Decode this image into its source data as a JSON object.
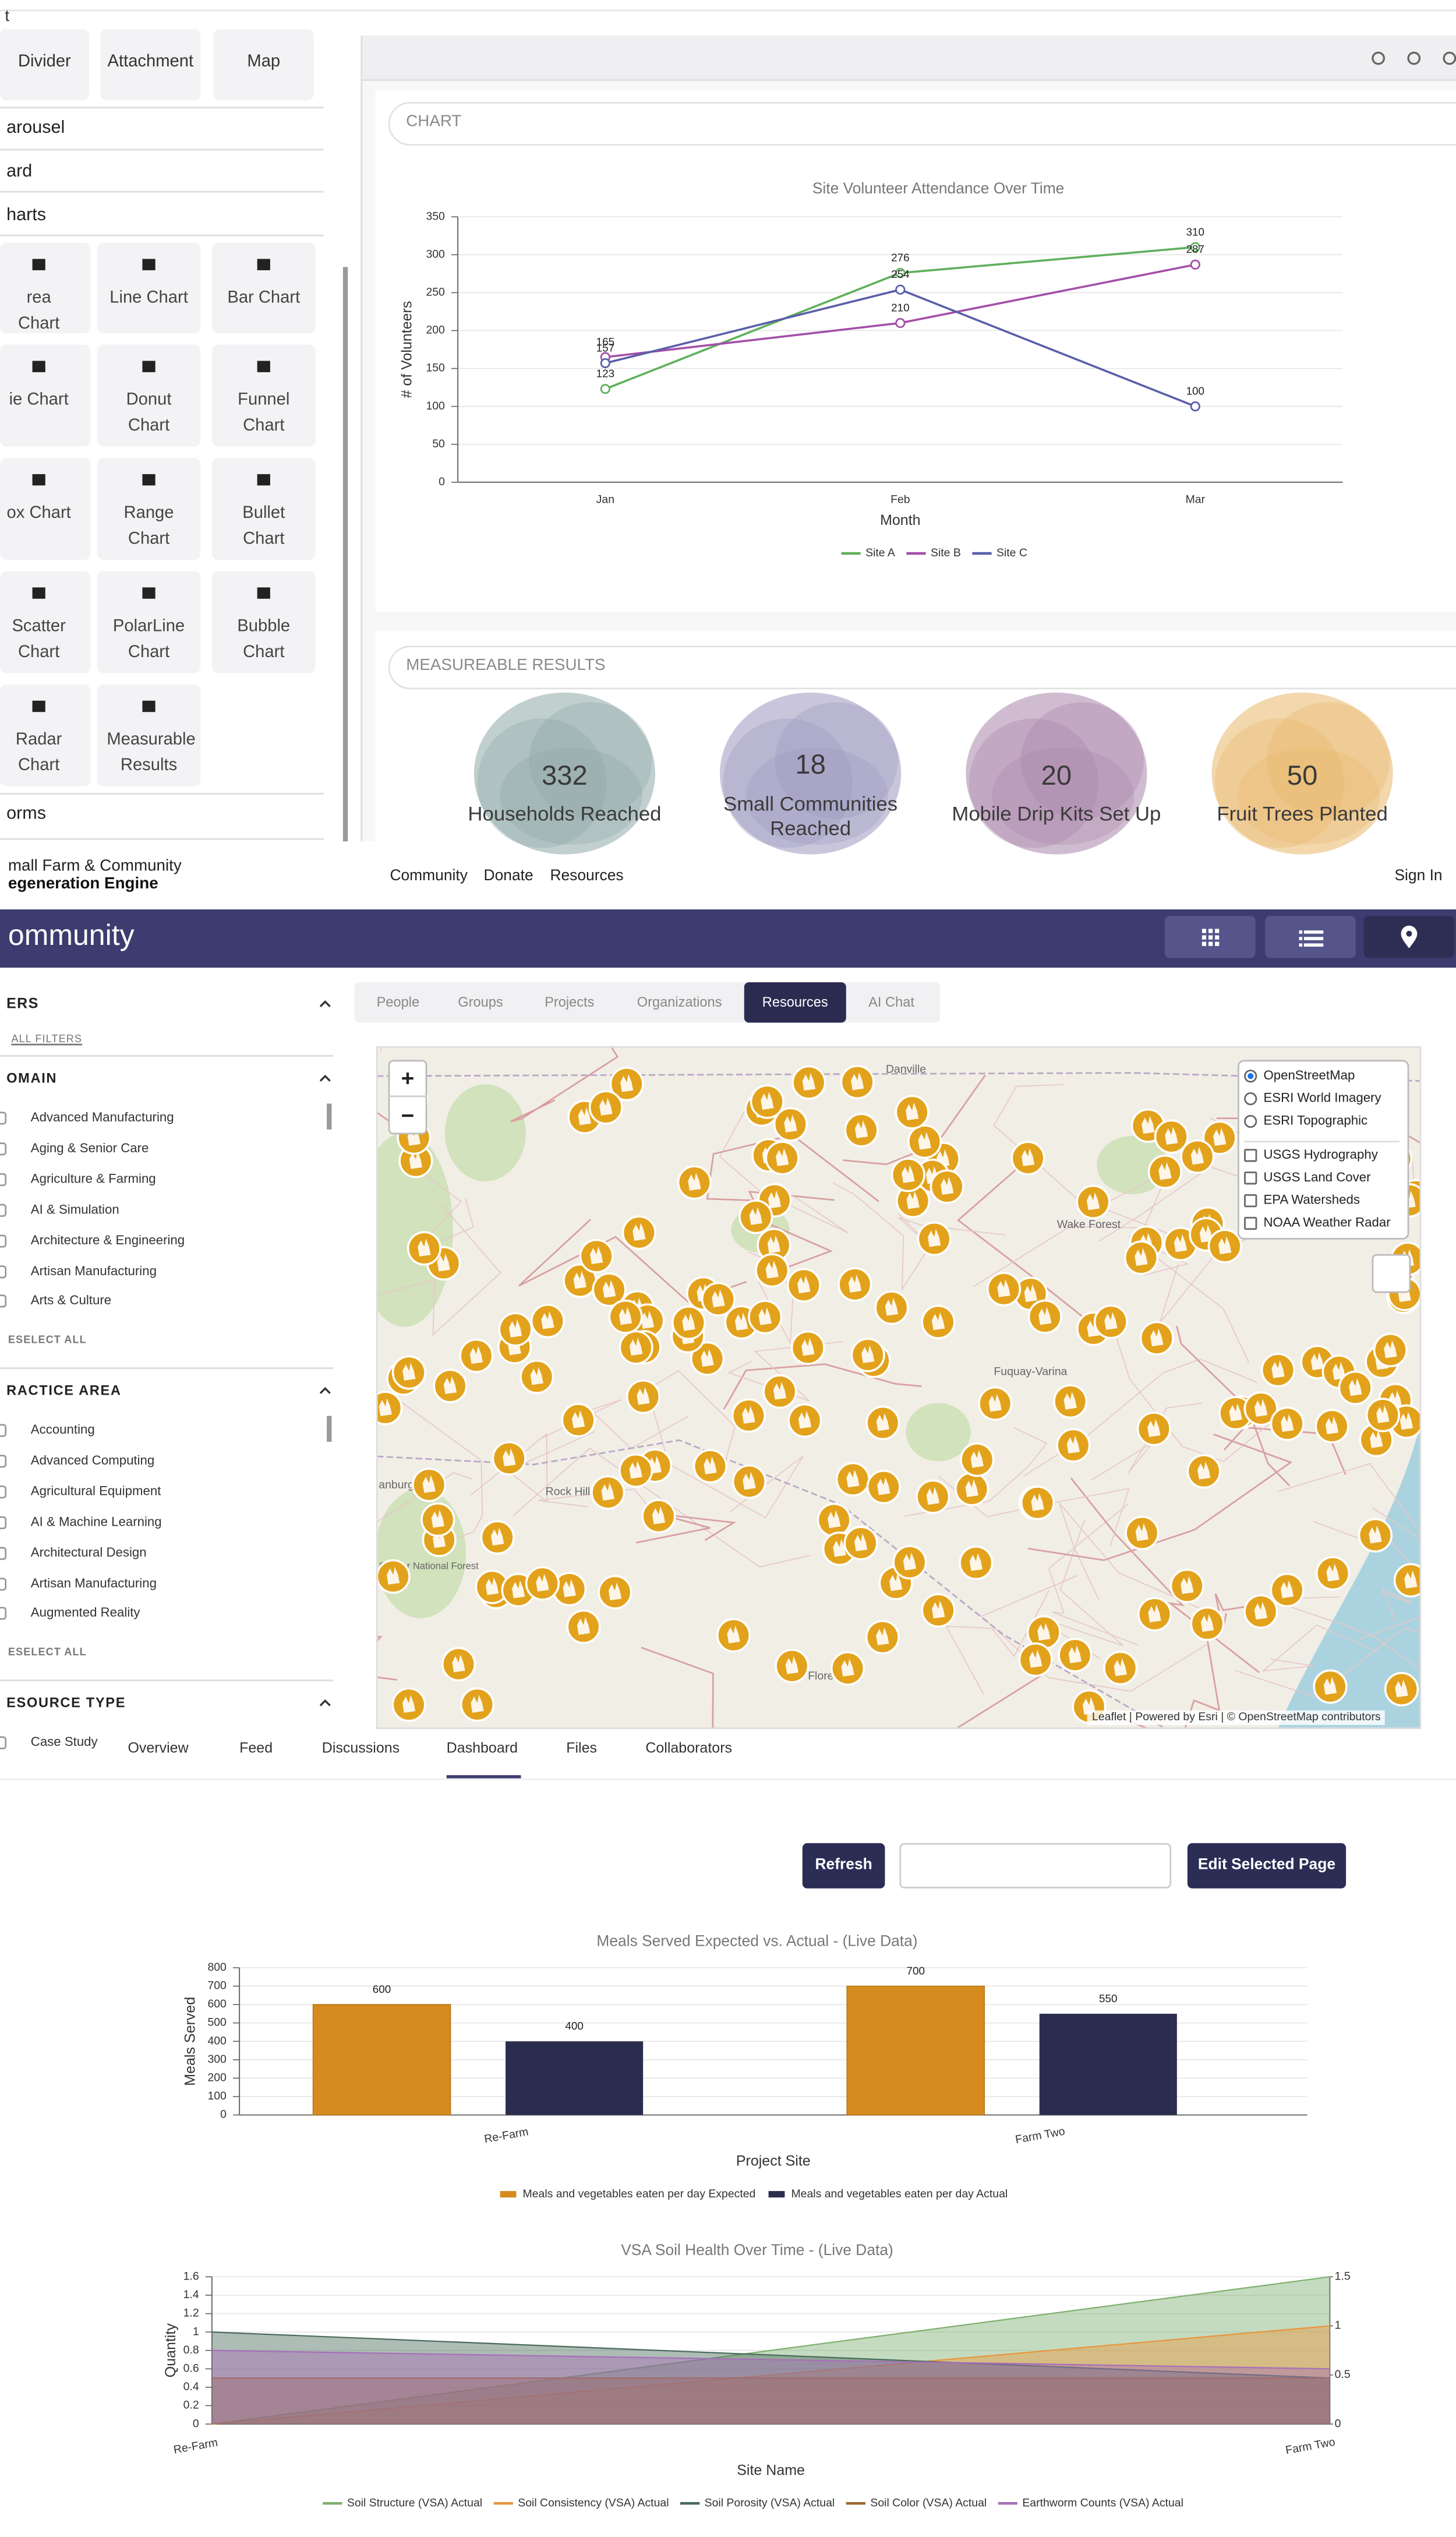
{
  "builder": {
    "cut_top": "t",
    "top_widgets": [
      "Divider",
      "Attachment",
      "Map"
    ],
    "sections": [
      "arousel",
      "ard",
      "harts"
    ],
    "chart_widgets": [
      "rea Chart",
      "Line Chart",
      "Bar Chart",
      "ie Chart",
      "Donut Chart",
      "Funnel Chart",
      "ox Chart",
      "Range Chart",
      "Bullet Chart",
      "Scatter Chart",
      "PolarLine Chart",
      "Bubble Chart",
      "Radar Chart",
      "Measurable Results"
    ],
    "forms_section": "orms"
  },
  "chart_card": {
    "label": "CHART"
  },
  "results_card": {
    "label": "MEASUREABLE RESULTS",
    "items": [
      {
        "value": 332,
        "label": "Households Reached",
        "color": "#8ea7a6"
      },
      {
        "value": 18,
        "label": "Small Communities Reached",
        "color": "#9c98c0"
      },
      {
        "value": 20,
        "label": "Mobile Drip Kits Set Up",
        "color": "#a985a9"
      },
      {
        "value": 50,
        "label": "Fruit Trees Planted",
        "color": "#e9b769"
      }
    ]
  },
  "site": {
    "brand": [
      "mall Farm & Community",
      "egeneration Engine"
    ],
    "nav": [
      "Community",
      "Donate",
      "Resources"
    ],
    "sign_in": "Sign In",
    "banner": "ommunity",
    "tabs": [
      "People",
      "Groups",
      "Projects",
      "Organizations",
      "Resources",
      "AI Chat"
    ],
    "active_tab": "Resources"
  },
  "filters": {
    "header": "ERS",
    "all": "ALL FILTERS",
    "groups": [
      {
        "title": "OMAIN",
        "items": [
          "Advanced Manufacturing",
          "Aging & Senior Care",
          "Agriculture & Farming",
          "AI & Simulation",
          "Architecture & Engineering",
          "Artisan Manufacturing",
          "Arts & Culture"
        ],
        "deselect": "ESELECT ALL"
      },
      {
        "title": "RACTICE AREA",
        "items": [
          "Accounting",
          "Advanced Computing",
          "Agricultural Equipment",
          "AI & Machine Learning",
          "Architectural Design",
          "Artisan Manufacturing",
          "Augmented Reality"
        ],
        "deselect": "ESELECT ALL"
      },
      {
        "title": "ESOURCE TYPE",
        "items": [
          "Case Study"
        ]
      }
    ]
  },
  "map": {
    "zoom": [
      "+",
      "−"
    ],
    "base_layers": [
      "OpenStreetMap",
      "ESRI World Imagery",
      "ESRI Topographic"
    ],
    "selected": "OpenStreetMap",
    "overlays": [
      "USGS Hydrography",
      "USGS Land Cover",
      "EPA Watersheds",
      "NOAA Weather Radar"
    ],
    "places": [
      "Danville",
      "Wake Forest",
      "Fuquay-Varina",
      "Rock Hill",
      "Florence",
      "anburg",
      "Sumter National Forest"
    ],
    "attribution": "Leaflet | Powered by Esri | © OpenStreetMap contributors"
  },
  "project": {
    "tabs": [
      "Overview",
      "Feed",
      "Discussions",
      "Dashboard",
      "Files",
      "Collaborators"
    ],
    "active_tab": "Dashboard",
    "refresh": "Refresh",
    "edit": "Edit Selected Page"
  },
  "chart_data": [
    {
      "type": "line",
      "title": "Site Volunteer Attendance Over Time",
      "categories": [
        "Jan",
        "Feb",
        "Mar"
      ],
      "x_label": "Month",
      "y_label": "# of Volunteers",
      "ylim": [
        0,
        350
      ],
      "yticks": [
        0,
        50,
        100,
        150,
        200,
        250,
        300,
        350
      ],
      "grid": true,
      "series": [
        {
          "name": "Site A",
          "color": "#5fb05b",
          "values": [
            123,
            276,
            310
          ]
        },
        {
          "name": "Site B",
          "color": "#a44fa8",
          "values": [
            165,
            210,
            287
          ]
        },
        {
          "name": "Site C",
          "color": "#5a5ea9",
          "values": [
            157,
            254,
            100
          ]
        }
      ]
    },
    {
      "type": "bar",
      "title": "Meals Served Expected vs. Actual  - (Live Data)",
      "categories": [
        "Re-Farm",
        "Farm Two"
      ],
      "x_label": "Project Site",
      "y_label": "Meals Served",
      "ylim": [
        0,
        800
      ],
      "yticks": [
        0,
        100,
        200,
        300,
        400,
        500,
        600,
        700,
        800
      ],
      "grid": true,
      "series": [
        {
          "name": "Meals and vegetables eaten per day Expected",
          "color": "#d68b1e",
          "values": [
            600,
            700
          ]
        },
        {
          "name": "Meals and vegetables eaten per day Actual",
          "color": "#2b2d4e",
          "values": [
            400,
            550
          ]
        }
      ]
    },
    {
      "type": "area",
      "title": "VSA Soil Health Over Time  - (Live Data)",
      "categories": [
        "Re-Farm",
        "Farm Two"
      ],
      "x_label": "Site Name",
      "y_label": "Quantity",
      "ylim": [
        0,
        1.6
      ],
      "yticks": [
        0,
        0.2,
        0.4,
        0.6,
        0.8,
        1,
        1.2,
        1.4,
        1.6
      ],
      "y2lim": [
        0,
        1.5
      ],
      "y2ticks": [
        0,
        0.5,
        1,
        1.5
      ],
      "grid": true,
      "series": [
        {
          "name": "Soil Structure (VSA) Actual",
          "color": "#7fb070",
          "values": [
            0,
            1.5
          ],
          "axis": "y2"
        },
        {
          "name": "Soil Consistency (VSA) Actual",
          "color": "#e8963c",
          "values": [
            0,
            1
          ],
          "axis": "y2"
        },
        {
          "name": "Soil Porosity (VSA) Actual",
          "color": "#4a6b5c",
          "values": [
            1,
            0.5
          ]
        },
        {
          "name": "Soil Color (VSA) Actual",
          "color": "#9a6a30",
          "values": [
            0.5,
            0.5
          ]
        },
        {
          "name": "Earthworm Counts (VSA) Actual",
          "color": "#a86fb8",
          "values": [
            0.8,
            0.6
          ]
        }
      ]
    }
  ]
}
